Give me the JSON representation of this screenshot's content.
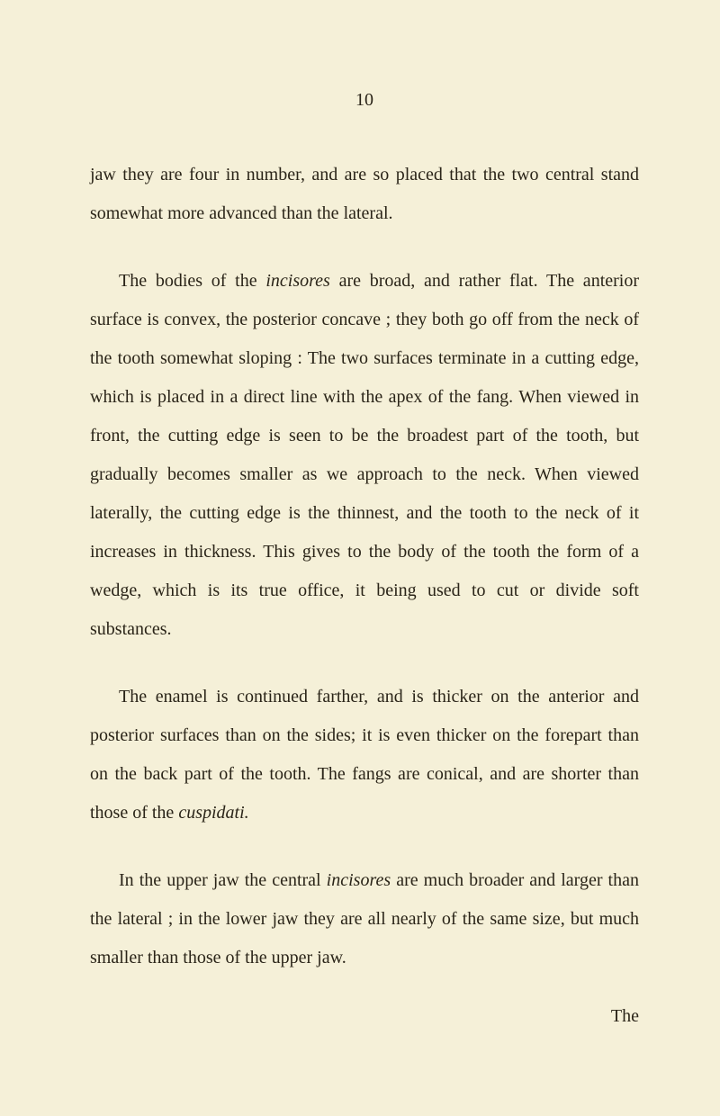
{
  "page_number": "10",
  "paragraphs": {
    "p1_part1": "jaw they are four in number, and are so placed that the two central stand somewhat more advanced than the lateral.",
    "p2_part1": "The bodies of the ",
    "p2_italic1": "incisores",
    "p2_part2": " are broad, and rather flat. The anterior surface is convex, the posterior concave ; they both go off from the neck of the tooth somewhat sloping : The two surfaces terminate in a cutting edge, which is placed in a di­rect line with the apex of the fang. When viewed in front, the cutting edge is seen to be the broadest part of the tooth, but gradually becomes smaller as we approach to the neck. When viewed laterally, the cutting edge is the thinnest, and the tooth to the neck of it increases in thickness. This gives to the body of the tooth the form of a wedge, which is its true office, it being used to cut or divide soft substances.",
    "p3_part1": "The enamel is continued farther, and is thicker on the an­terior and posterior surfaces than on the sides; it is even thicker on the forepart than on the back part of the tooth. The fangs are conical, and are shorter than those of the ",
    "p3_italic1": "cus­pidati.",
    "p4_part1": "In the upper jaw the central ",
    "p4_italic1": "incisores",
    "p4_part2": " are much broader and larger than the lateral ; in the lower jaw they are all nearly of the same size, but much smaller than those of the upper jaw."
  },
  "catchword": "The",
  "colors": {
    "background": "#f5f0d8",
    "text": "#2a2418"
  },
  "typography": {
    "body_fontsize": 20,
    "line_height": 2.15,
    "font_family": "Georgia, Times New Roman, serif"
  }
}
